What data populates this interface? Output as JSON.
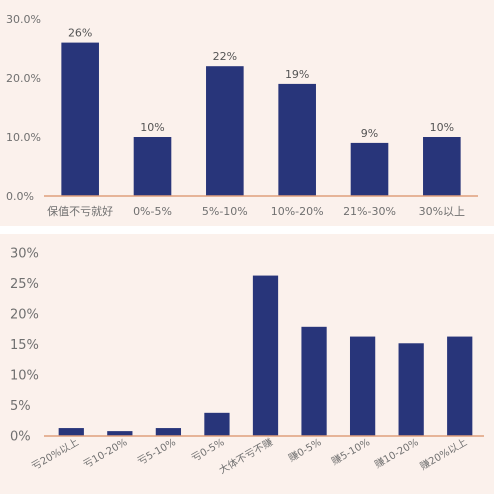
{
  "colors": {
    "bar": "#28357a",
    "axis": "#e0a07c",
    "panel_bg": "#fbf1ec",
    "text": "#707070"
  },
  "chart_data": [
    {
      "type": "bar",
      "title": "",
      "xlabel": "",
      "ylabel": "",
      "categories": [
        "保值不亏就好",
        "0%-5%",
        "5%-10%",
        "10%-20%",
        "21%-30%",
        "30%以上"
      ],
      "values": [
        26,
        10,
        22,
        19,
        9,
        10
      ],
      "data_labels": [
        "26%",
        "10%",
        "22%",
        "19%",
        "9%",
        "10%"
      ],
      "ylim": [
        0,
        30
      ],
      "yticks": [
        {
          "value": 0,
          "label": "0.0%"
        },
        {
          "value": 10,
          "label": "10.0%"
        },
        {
          "value": 20,
          "label": "20.0%"
        },
        {
          "value": 30,
          "label": "30.0%"
        }
      ],
      "grid": false
    },
    {
      "type": "bar",
      "title": "",
      "xlabel": "",
      "ylabel": "",
      "categories": [
        "亏20%以上",
        "亏10-20%",
        "亏5-10%",
        "亏0-5%",
        "大体不亏不赚",
        "赚0-5%",
        "赚5-10%",
        "赚10-20%",
        "赚20%以上"
      ],
      "values": [
        1.3,
        0.8,
        1.3,
        3.8,
        26.3,
        17.9,
        16.3,
        15.2,
        16.3
      ],
      "ylim": [
        0,
        30
      ],
      "yticks": [
        {
          "value": 0,
          "label": "0%"
        },
        {
          "value": 5,
          "label": "5%"
        },
        {
          "value": 10,
          "label": "10%"
        },
        {
          "value": 15,
          "label": "15%"
        },
        {
          "value": 20,
          "label": "20%"
        },
        {
          "value": 25,
          "label": "25%"
        },
        {
          "value": 30,
          "label": "30%"
        }
      ],
      "grid": false
    }
  ]
}
